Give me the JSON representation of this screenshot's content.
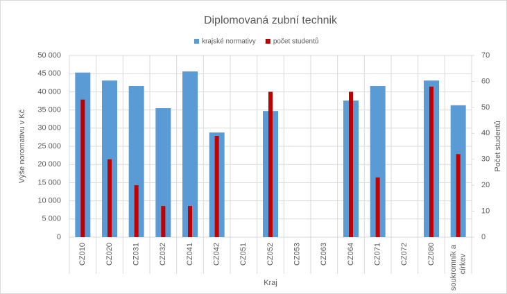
{
  "chart_data": {
    "type": "bar",
    "title": "Diplomovaná zubní technik",
    "x_label": "Kraj",
    "y_label": "Výše noromativu v Kč",
    "y2_label": "Počet studentů",
    "categories": [
      "CZ010",
      "CZ020",
      "CZ031",
      "CZ032",
      "CZ041",
      "CZ042",
      "CZ051",
      "CZ052",
      "CZ053",
      "CZ063",
      "CZ064",
      "CZ071",
      "CZ072",
      "CZ080",
      "soukromník a církev"
    ],
    "series": [
      {
        "name": "krajské normativy",
        "color": "#5b9bd5",
        "values": [
          45300,
          43100,
          41600,
          35500,
          45600,
          28800,
          null,
          34700,
          null,
          null,
          37600,
          41600,
          null,
          43100,
          36300
        ]
      },
      {
        "name": "počet studentů",
        "color": "#c00000",
        "axis": "y2",
        "values": [
          53,
          30,
          20,
          12,
          12,
          39,
          null,
          56,
          null,
          null,
          56,
          23,
          null,
          58,
          32
        ]
      }
    ],
    "ylim": [
      0,
      50000
    ],
    "yticks": [
      0,
      {
        "value": 5000,
        "label": "5 000"
      },
      {
        "value": 10000,
        "label": "10 000"
      },
      {
        "value": 15000,
        "label": "15 000"
      },
      {
        "value": 20000,
        "label": "20 000"
      },
      {
        "value": 25000,
        "label": "25 000"
      },
      {
        "value": 30000,
        "label": "30 000"
      },
      {
        "value": 35000,
        "label": "35 000"
      },
      {
        "value": 40000,
        "label": "40 000"
      },
      {
        "value": 45000,
        "label": "45 000"
      },
      {
        "value": 50000,
        "label": "50 000"
      }
    ],
    "y2lim": [
      0,
      70
    ],
    "y2ticks": [
      0,
      10,
      20,
      30,
      40,
      50,
      60,
      70
    ],
    "grid": true,
    "legend": "top"
  }
}
